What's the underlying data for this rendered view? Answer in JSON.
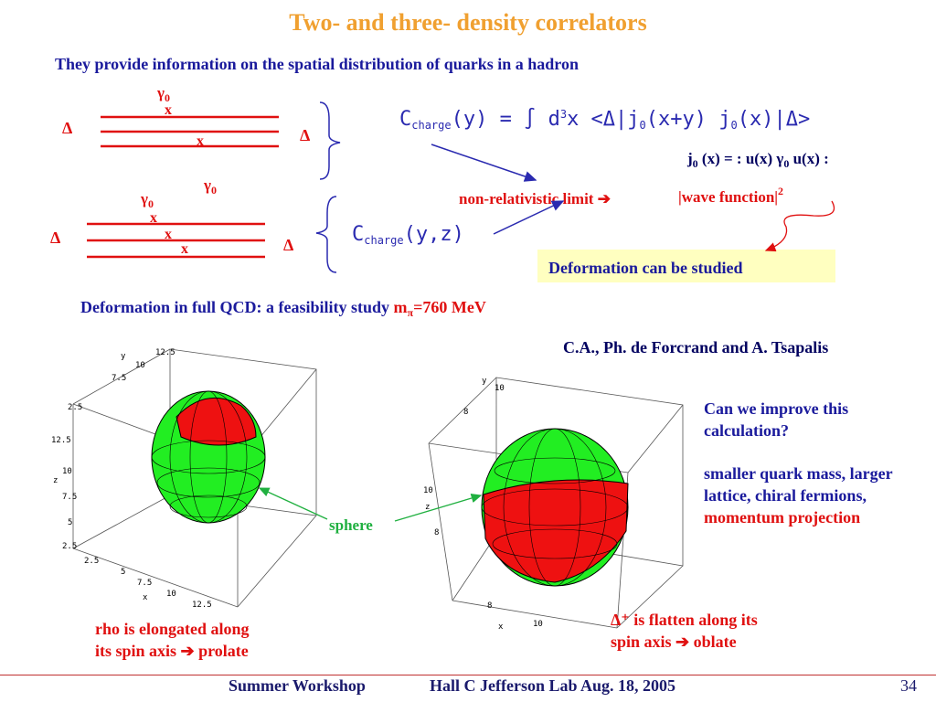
{
  "slide": {
    "title": "Two- and three- density correlators",
    "subtitle": "They provide information on the spatial distribution of quarks in a hadron",
    "page_number": "34"
  },
  "diagram_top": {
    "delta_left": "Δ",
    "delta_right": "Δ",
    "gamma_top": "γ",
    "gamma_top_sub": "0",
    "gamma_bottom": "γ",
    "gamma_bottom_sub": "0",
    "x1": "x",
    "x2": "x"
  },
  "diagram_bottom": {
    "delta_left": "Δ",
    "delta_right": "Δ",
    "gamma": "γ",
    "gamma_sub": "0",
    "x1": "x",
    "x2": "x",
    "x3": "x"
  },
  "formulas": {
    "charge_two": "C",
    "charge_two_sub": "charge",
    "charge_two_body": "(y) = ∫ d",
    "charge_two_exp": "3",
    "charge_two_rest": "x <Δ|j",
    "charge_two_j_sub": "0",
    "charge_two_mid": "(x+y) j",
    "charge_two_j2_sub": "0",
    "charge_two_end": "(x)|Δ>",
    "charge_three": "C",
    "charge_three_sub": "charge",
    "charge_three_body": "(y,z)",
    "current_def": "(x) = : u(x) γ",
    "current_j": "j",
    "current_j_sub": "0",
    "current_gamma_sub": "0",
    "current_tail": "u(x) :",
    "nonrel_limit": "non-relativistic limit ➔",
    "wave_function": "|wave function|",
    "wave_function_exp": "2",
    "deformation_studied": "Deformation can be studied"
  },
  "feasibility": {
    "text": "Deformation in full QCD: a feasibility study ",
    "mass_label": "m",
    "mass_sub": "π",
    "mass_value": "=760 MeV"
  },
  "authors": "C.A., Ph. de Forcrand and A. Tsapalis",
  "plots": {
    "left_axis_ticks": [
      "12.5",
      "10",
      "7.5",
      "2.5"
    ],
    "left_z_ticks": [
      "12.5",
      "10",
      "7.5",
      "5",
      "2.5"
    ],
    "left_x_ticks": [
      "2.5",
      "5",
      "7.5",
      "10",
      "12.5"
    ],
    "right_axis_ticks": [
      "10",
      "8"
    ],
    "axis_y": "y",
    "axis_z": "z",
    "axis_x": "x",
    "sphere_label": "sphere"
  },
  "captions": {
    "rho_line1": "rho is elongated along",
    "rho_line2": "its spin axis ➔ prolate",
    "delta_line1": "Δ⁺ is flatten along its",
    "delta_line2": "spin axis ➔ oblate"
  },
  "sidebar": {
    "question": "Can we improve  this calculation?",
    "improvements": "smaller quark mass, larger lattice, chiral fermions, ",
    "momentum": "momentum projection"
  },
  "footer": {
    "workshop": "Summer Workshop",
    "venue": "Hall C Jefferson Lab Aug. 18, 2005"
  },
  "colors": {
    "title": "#f0a030",
    "navy": "#1a1a9c",
    "red": "#e01010",
    "green": "#20b040",
    "sphere_green": "#22ee22",
    "sphere_red": "#ee1111"
  }
}
